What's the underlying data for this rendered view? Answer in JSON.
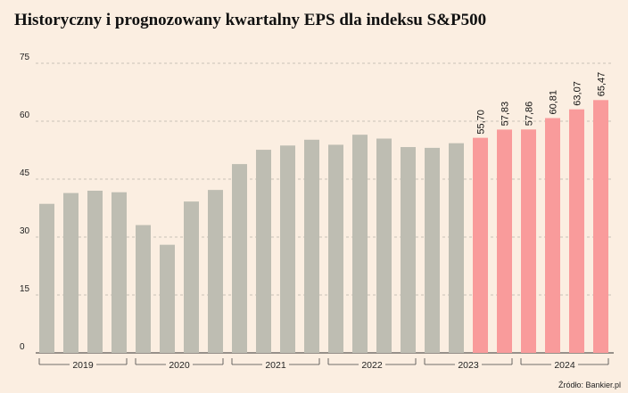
{
  "title": "Historyczny i prognozowany kwartalny EPS dla indeksu S&P500",
  "source": "Źródło: Bankier.pl",
  "colors": {
    "historical": "#bebdb2",
    "forecast": "#f99b9b",
    "grid": "#b9b2a8",
    "text": "#222222",
    "background": "#fbeee1"
  },
  "chart_data": {
    "type": "bar",
    "title": "Historyczny i prognozowany kwartalny EPS dla indeksu S&P500",
    "xlabel": "",
    "ylabel": "",
    "ylim": [
      0,
      75
    ],
    "yticks": [
      0,
      15,
      30,
      45,
      60,
      75
    ],
    "grid": true,
    "values": [
      38.6,
      41.4,
      42.0,
      41.6,
      33.1,
      28.0,
      39.2,
      42.2,
      48.9,
      52.6,
      53.7,
      55.2,
      53.9,
      56.5,
      55.5,
      53.3,
      53.1,
      54.3,
      55.7,
      57.83,
      57.86,
      60.81,
      63.07,
      65.47
    ],
    "kinds": [
      "historical",
      "historical",
      "historical",
      "historical",
      "historical",
      "historical",
      "historical",
      "historical",
      "historical",
      "historical",
      "historical",
      "historical",
      "historical",
      "historical",
      "historical",
      "historical",
      "historical",
      "historical",
      "forecast",
      "forecast",
      "forecast",
      "forecast",
      "forecast",
      "forecast"
    ],
    "data_labels": [
      "",
      "",
      "",
      "",
      "",
      "",
      "",
      "",
      "",
      "",
      "",
      "",
      "",
      "",
      "",
      "",
      "",
      "",
      "55,70",
      "57,83",
      "57,86",
      "60,81",
      "63,07",
      "65,47"
    ],
    "years": [
      {
        "label": "2019",
        "start": 0,
        "end": 3
      },
      {
        "label": "2020",
        "start": 4,
        "end": 7
      },
      {
        "label": "2021",
        "start": 8,
        "end": 11
      },
      {
        "label": "2022",
        "start": 12,
        "end": 15
      },
      {
        "label": "2023",
        "start": 16,
        "end": 19
      },
      {
        "label": "2024",
        "start": 20,
        "end": 23
      }
    ]
  }
}
